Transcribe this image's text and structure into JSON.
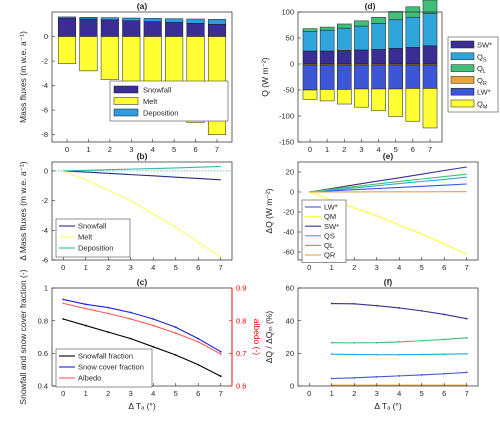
{
  "chart_data": [
    {
      "panel": "(a)",
      "type": "bar",
      "stacked": true,
      "title": "(a)",
      "xlabel": "",
      "ylabel": "Mass fluxes (m w.e. a⁻¹)",
      "x": [
        0,
        1,
        2,
        3,
        4,
        5,
        6,
        7
      ],
      "xlim": [
        -0.7,
        7.7
      ],
      "ylim": [
        -8.6,
        2.0
      ],
      "yticks": [
        -8,
        -6,
        -4,
        -2,
        0
      ],
      "legend_position": "inside-right",
      "series": [
        {
          "name": "Snowfall",
          "color": "#3a2e96",
          "values": [
            1.5,
            1.43,
            1.36,
            1.29,
            1.22,
            1.15,
            1.08,
            1.0
          ]
        },
        {
          "name": "Melt",
          "color": "#ffff33",
          "values": [
            -2.2,
            -2.8,
            -3.5,
            -4.2,
            -5.1,
            -6.0,
            -7.0,
            -8.0
          ]
        },
        {
          "name": "Deposition",
          "color": "#2f9be0",
          "values": [
            0.1,
            0.14,
            0.18,
            0.22,
            0.26,
            0.3,
            0.35,
            0.4
          ]
        }
      ]
    },
    {
      "panel": "(b)",
      "type": "line",
      "title": "(b)",
      "xlabel": "",
      "ylabel": "Δ Mass fluxes (m w.e. a⁻¹)",
      "x": [
        0,
        1,
        2,
        3,
        4,
        5,
        6,
        7
      ],
      "xlim": [
        -0.5,
        7.5
      ],
      "ylim": [
        -6,
        0.6
      ],
      "yticks": [
        -6,
        -4,
        -2,
        0
      ],
      "zero_line": "dotted",
      "legend_position": "bottom-left",
      "series": [
        {
          "name": "Snowfall",
          "color": "#2b2a87",
          "values": [
            0,
            -0.08,
            -0.16,
            -0.25,
            -0.33,
            -0.42,
            -0.51,
            -0.6
          ]
        },
        {
          "name": "Melt",
          "color": "#ffff66",
          "values": [
            0,
            -0.6,
            -1.3,
            -2.0,
            -2.9,
            -3.8,
            -4.8,
            -5.8
          ]
        },
        {
          "name": "Deposition",
          "color": "#3cb4a6",
          "values": [
            0,
            0.04,
            0.08,
            0.12,
            0.16,
            0.2,
            0.25,
            0.3
          ]
        }
      ]
    },
    {
      "panel": "(c)",
      "type": "line",
      "title": "(c)",
      "xlabel": "Δ Tₐ (°)",
      "ylabel": "Snowfall and snow cover fraction (-)",
      "y2label": "albedo (-)",
      "y2label_color": "#ff0000",
      "x": [
        0,
        1,
        2,
        3,
        4,
        5,
        6,
        7
      ],
      "xlim": [
        -0.5,
        7.5
      ],
      "ylim": [
        0.4,
        1.0
      ],
      "yticks": [
        0.4,
        0.6,
        0.8,
        1.0
      ],
      "y2lim": [
        0.6,
        0.9
      ],
      "y2ticks": [
        0.6,
        0.7,
        0.8,
        0.9
      ],
      "legend_position": "bottom-left",
      "series": [
        {
          "name": "Snowfall fraction",
          "color": "#000000",
          "axis": "left",
          "values": [
            0.81,
            0.77,
            0.73,
            0.69,
            0.64,
            0.59,
            0.53,
            0.46
          ]
        },
        {
          "name": "Snow cover fraction",
          "color": "#1f1fe0",
          "axis": "left",
          "values": [
            0.93,
            0.9,
            0.88,
            0.85,
            0.81,
            0.76,
            0.69,
            0.61
          ]
        },
        {
          "name": "Albedo",
          "color": "#ff5a5a",
          "axis": "right",
          "values": [
            0.853,
            0.837,
            0.822,
            0.805,
            0.785,
            0.762,
            0.735,
            0.698
          ]
        }
      ]
    },
    {
      "panel": "(d)",
      "type": "bar",
      "stacked": true,
      "title": "(d)",
      "xlabel": "",
      "ylabel": "Q (W m⁻²)",
      "x": [
        0,
        1,
        2,
        3,
        4,
        5,
        6,
        7
      ],
      "xlim": [
        -0.7,
        7.7
      ],
      "ylim": [
        -150,
        100
      ],
      "yticks": [
        -150,
        -100,
        -50,
        0,
        50,
        100
      ],
      "legend_position": "outside-right",
      "series": [
        {
          "name": "SW*",
          "legend": "SW*",
          "color": "#3a2e96",
          "values": [
            25,
            25,
            26,
            27,
            28,
            30,
            32,
            35
          ]
        },
        {
          "name": "QS",
          "legend": "QS",
          "color": "#2fa5db",
          "values": [
            38,
            40,
            43,
            46,
            50,
            55,
            58,
            62
          ]
        },
        {
          "name": "QL",
          "legend": "QL",
          "color": "#3fbf7a",
          "values": [
            5,
            6,
            8,
            10,
            12,
            16,
            20,
            26
          ]
        },
        {
          "name": "QR",
          "legend": "QR",
          "color": "#e8a33a",
          "values": [
            -2,
            -2,
            -2,
            -2,
            -2,
            -2,
            -2,
            -2
          ]
        },
        {
          "name": "LW*",
          "legend": "LW*",
          "color": "#3d56d6",
          "values": [
            -48,
            -47,
            -47,
            -46,
            -46,
            -46,
            -45,
            -45
          ]
        },
        {
          "name": "QM",
          "legend": "QM",
          "color": "#ffff33",
          "values": [
            -18,
            -22,
            -28,
            -35,
            -42,
            -53,
            -63,
            -76
          ]
        }
      ],
      "legend_sub": {
        "QS": "S",
        "QL": "L",
        "QR": "R",
        "QM": "M"
      }
    },
    {
      "panel": "(e)",
      "type": "line",
      "title": "(e)",
      "xlabel": "",
      "ylabel": "ΔQ (W m⁻²)",
      "x": [
        0,
        1,
        2,
        3,
        4,
        5,
        6,
        7
      ],
      "xlim": [
        -0.5,
        7.5
      ],
      "ylim": [
        -68,
        30
      ],
      "yticks": [
        -60,
        -40,
        -20,
        0,
        20
      ],
      "legend_position": "bottom-left",
      "series": [
        {
          "name": "LW*",
          "color": "#3d56d6",
          "values": [
            0,
            1.2,
            2.3,
            3.4,
            4.6,
            5.7,
            6.8,
            8.0
          ]
        },
        {
          "name": "QM",
          "color": "#ffff33",
          "values": [
            0,
            -8,
            -16,
            -24,
            -33,
            -42,
            -52,
            -62
          ]
        },
        {
          "name": "SW*",
          "color": "#3a2e96",
          "values": [
            0,
            3.5,
            7.2,
            10.8,
            14.2,
            17.8,
            21.5,
            25.0
          ]
        },
        {
          "name": "QS",
          "color": "#2fa5db",
          "values": [
            0,
            2.0,
            4.1,
            6.2,
            8.4,
            10.5,
            12.6,
            14.8
          ]
        },
        {
          "name": "QL",
          "color": "#3fbf7a",
          "values": [
            0,
            2.8,
            5.4,
            8.0,
            10.6,
            13.0,
            15.4,
            17.8
          ]
        },
        {
          "name": "QR",
          "color": "#e8a33a",
          "values": [
            0,
            0.1,
            0.1,
            0.2,
            0.2,
            0.2,
            0.3,
            0.3
          ]
        }
      ]
    },
    {
      "panel": "(f)",
      "type": "line",
      "title": "(f)",
      "xlabel": "Δ Tₐ (°)",
      "ylabel": "ΔQ / ΔQₘ (%)",
      "x": [
        1,
        2,
        3,
        4,
        5,
        6,
        7
      ],
      "xticks": [
        0,
        1,
        2,
        3,
        4,
        5,
        6,
        7
      ],
      "xlim": [
        -0.5,
        7.5
      ],
      "ylim": [
        0,
        60
      ],
      "yticks": [
        0,
        20,
        40,
        60
      ],
      "series": [
        {
          "name": "SW*",
          "color": "#3a2e96",
          "values": [
            50.5,
            50.3,
            49.2,
            47.8,
            46.0,
            43.8,
            41.2
          ]
        },
        {
          "name": "QL",
          "color": "#3fbf7a",
          "values": [
            26.5,
            26.4,
            26.5,
            27.0,
            27.7,
            28.5,
            29.5
          ]
        },
        {
          "name": "QS",
          "color": "#2fa5db",
          "values": [
            19.5,
            19.3,
            19.2,
            19.2,
            19.3,
            19.5,
            19.7
          ]
        },
        {
          "name": "LW*",
          "color": "#3d56d6",
          "values": [
            4.6,
            5.0,
            5.6,
            6.2,
            6.8,
            7.5,
            8.3
          ]
        },
        {
          "name": "QR",
          "color": "#e8a33a",
          "values": [
            0.5,
            0.5,
            0.5,
            0.5,
            0.5,
            0.5,
            0.5
          ]
        }
      ]
    }
  ]
}
